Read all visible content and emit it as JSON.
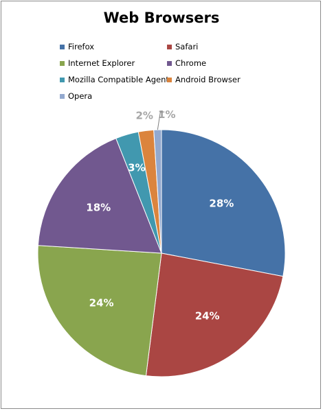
{
  "chart_data": {
    "type": "pie",
    "title": "Web Browsers",
    "legend_placement": "top",
    "slices": [
      {
        "name": "Firefox",
        "value": 28,
        "label": "28%",
        "color": "#4572A7"
      },
      {
        "name": "Safari",
        "value": 24,
        "label": "24%",
        "color": "#AA4643"
      },
      {
        "name": "Internet Explorer",
        "value": 24,
        "label": "24%",
        "color": "#89A54E"
      },
      {
        "name": "Chrome",
        "value": 18,
        "label": "18%",
        "color": "#71588F"
      },
      {
        "name": "Mozilla Compatible Agent",
        "value": 3,
        "label": "3%",
        "color": "#4198AF"
      },
      {
        "name": "Android Browser",
        "value": 2,
        "label": "2%",
        "color": "#DB843D"
      },
      {
        "name": "Opera",
        "value": 1,
        "label": "1%",
        "color": "#93A9CF"
      }
    ]
  }
}
